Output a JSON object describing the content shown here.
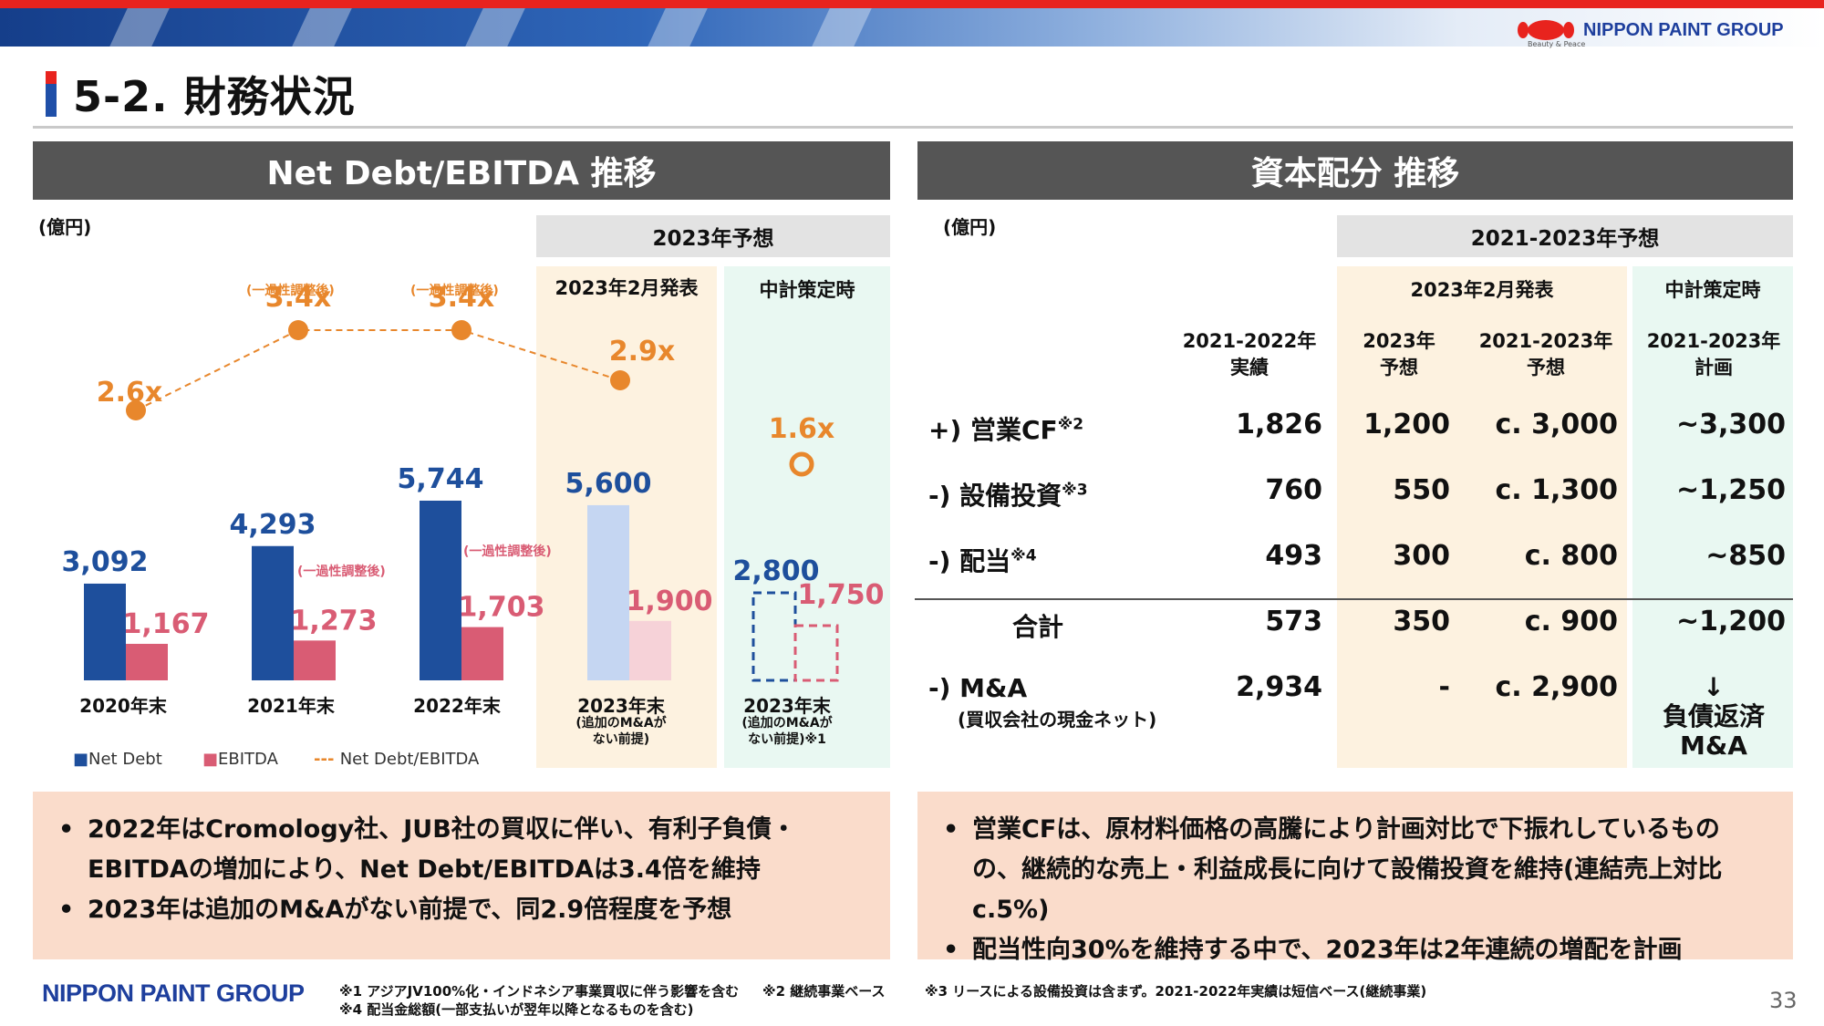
{
  "brand": {
    "name": "NIPPON PAINT GROUP",
    "tagline": "Beauty & Peace"
  },
  "title": "5-2. 財務状況",
  "left_panel": {
    "header": "Net Debt/EBITDA 推移",
    "unit": "(億円)",
    "forecast_header": "2023年予想",
    "col_feb": "2023年2月発表",
    "col_plan": "中計策定時",
    "adj_note": "(一過性調整後)",
    "chart_data": {
      "type": "bar",
      "categories": [
        "2020年末",
        "2021年末",
        "2022年末",
        "2023年末",
        "2023年末"
      ],
      "category_notes": [
        "",
        "",
        "",
        "(追加のM&Aがない前提)",
        "(追加のM&Aがない前提)※1"
      ],
      "series": [
        {
          "name": "Net Debt",
          "values": [
            3092,
            4293,
            5744,
            5600,
            2800
          ],
          "labels": [
            "3,092",
            "4,293",
            "5,744",
            "5,600",
            "2,800"
          ],
          "color": "#1e4f9c"
        },
        {
          "name": "EBITDA",
          "values": [
            1167,
            1273,
            1703,
            1900,
            1750
          ],
          "labels": [
            "1,167",
            "1,273",
            "1,703",
            "1,900",
            "1,750"
          ],
          "color": "#d95c74"
        },
        {
          "name": "Net Debt/EBITDA",
          "values": [
            2.6,
            3.4,
            3.4,
            2.9,
            1.6
          ],
          "labels": [
            "2.6x",
            "3.4x",
            "3.4x",
            "2.9x",
            "1.6x"
          ],
          "color": "#e8872c"
        }
      ],
      "legend": [
        "■Net Debt",
        "■EBITDA",
        "Net Debt/EBITDA"
      ],
      "legend_position": "bottom-left"
    },
    "bullets": [
      "2022年はCromology社、JUB社の買収に伴い、有利子負債・EBITDAの増加により、Net Debt/EBITDAは3.4倍を維持",
      "2023年は追加のM&Aがない前提で、同2.9倍程度を予想"
    ]
  },
  "right_panel": {
    "header": "資本配分 推移",
    "unit": "(億円)",
    "forecast_header": "2021-2023年予想",
    "col_feb": "2023年2月発表",
    "col_plan": "中計策定時",
    "columns": [
      "2021-2022年実績",
      "2023年予想",
      "2021-2023年予想",
      "2021-2023年計画"
    ],
    "column_lines": [
      [
        "2021-2022年",
        "実績"
      ],
      [
        "2023年",
        "予想"
      ],
      [
        "2021-2023年",
        "予想"
      ],
      [
        "2021-2023年",
        "計画"
      ]
    ],
    "rows": [
      {
        "label": "+) 営業CF",
        "sup": "※2",
        "values": [
          "1,826",
          "1,200",
          "c. 3,000",
          "~3,300"
        ]
      },
      {
        "label": "-) 設備投資",
        "sup": "※3",
        "values": [
          "760",
          "550",
          "c. 1,300",
          "~1,250"
        ]
      },
      {
        "label": "-) 配当",
        "sup": "※4",
        "values": [
          "493",
          "300",
          "c. 800",
          "~850"
        ]
      },
      {
        "label": "合計",
        "sup": "",
        "values": [
          "573",
          "350",
          "c. 900",
          "~1,200"
        ]
      },
      {
        "label": "-) M&A",
        "sup": "",
        "note": "(買収会社の現金ネット)",
        "values": [
          "2,934",
          "-",
          "c. 2,900",
          ""
        ]
      }
    ],
    "ma_plan": {
      "arrow": "↓",
      "line1": "負債返済",
      "line2": "M&A"
    },
    "bullets": [
      "営業CFは、原材料価格の高騰により計画対比で下振れしているものの、継続的な売上・利益成長に向けて設備投資を維持(連結売上対比c.5%)",
      "配当性向30%を維持する中で、2023年は2年連続の増配を計画"
    ]
  },
  "footnotes": {
    "n1": "※1 アジアJV100%化・インドネシア事業買収に伴う影響を含む",
    "n2": "※2 継続事業ベース",
    "n3": "※3 リースによる設備投資は含まず。2021-2022年実績は短信ベース(継続事業)",
    "n4": "※4 配当金総額(一部支払いが翌年以降となるものを含む)"
  },
  "page_number": "33",
  "colors": {
    "net_debt": "#1e4f9c",
    "ebitda": "#d95c74",
    "ratio": "#e8872c",
    "header_bg": "#555555",
    "bullet_bg": "#fadccb"
  }
}
